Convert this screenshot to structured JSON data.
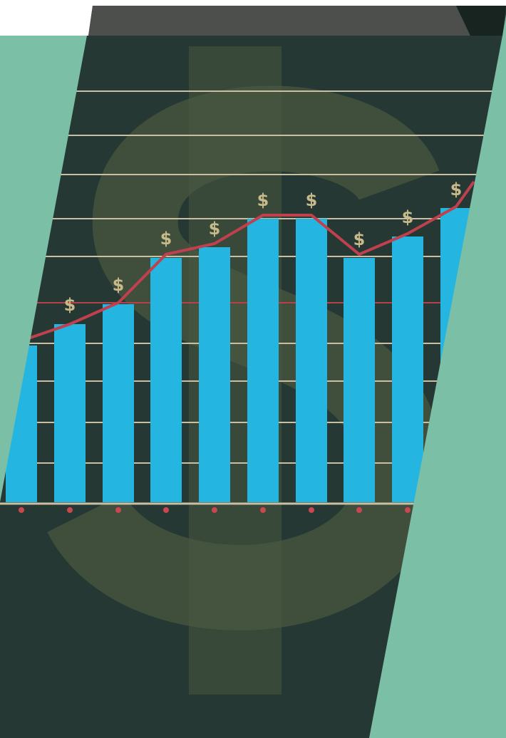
{
  "image": {
    "dollar_labels": [
      "$",
      "$",
      "$",
      "$",
      "$",
      "$",
      "$",
      "$",
      "$"
    ]
  }
}
